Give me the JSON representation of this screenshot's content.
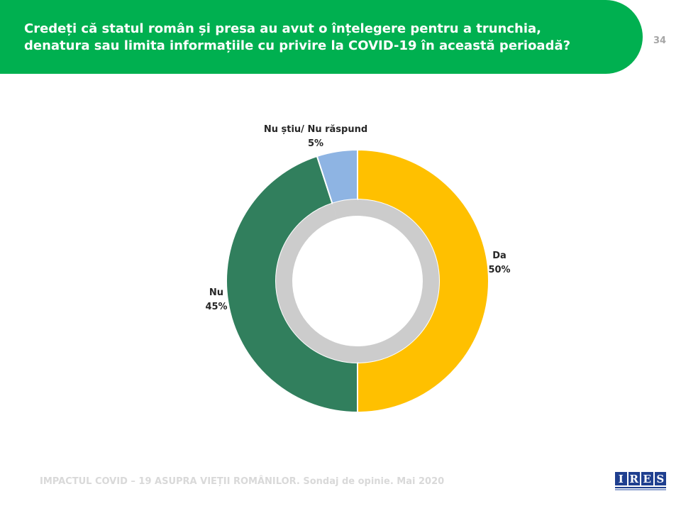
{
  "header": {
    "title_line1": "Credeți că statul român și presa au avut o înțelegere pentru a trunchia,",
    "title_line2": "denatura sau limita informațiile cu privire la COVID-19 în această perioadă?",
    "page_number": "34",
    "background_color": "#00b050"
  },
  "footer": {
    "text": "IMPACTUL COVID – 19 ASUPRA VIEȚII ROMÂNILOR. Sondaj de opinie. Mai 2020"
  },
  "logo": {
    "letters": [
      "I",
      "R",
      "E",
      "S"
    ],
    "color": "#1f3f8f"
  },
  "chart_data": {
    "type": "pie",
    "variant": "donut",
    "categories": [
      "Da",
      "Nu",
      "Nu știu/ Nu răspund"
    ],
    "values": [
      50,
      45,
      5
    ],
    "value_labels": [
      "50%",
      "45%",
      "5%"
    ],
    "colors": [
      "#ffc000",
      "#317f5d",
      "#8eb4e3"
    ],
    "start": "12 o'clock, clockwise",
    "legend": "none (labels next to slices)"
  }
}
